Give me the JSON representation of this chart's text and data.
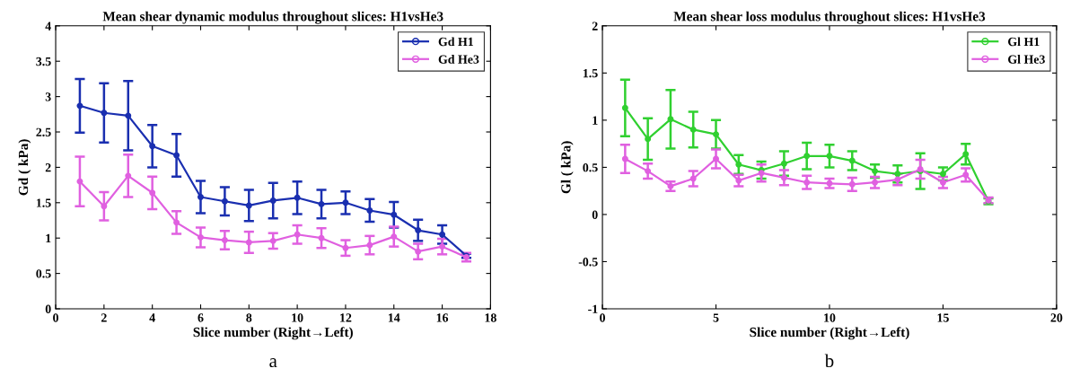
{
  "chart_data": [
    {
      "type": "line",
      "title": "Mean shear dynamic modulus throughout slices: H1vsHe3",
      "xlabel": "Slice number (Right→Left)",
      "ylabel": "Gd ( kPa)",
      "annotations": [
        "a"
      ],
      "x": [
        1,
        2,
        3,
        4,
        5,
        6,
        7,
        8,
        9,
        10,
        11,
        12,
        13,
        14,
        15,
        16,
        17
      ],
      "xlim": [
        0,
        18
      ],
      "xticks": [
        0,
        2,
        4,
        6,
        8,
        10,
        12,
        14,
        16,
        18
      ],
      "ylim": [
        0,
        4
      ],
      "yticks": [
        0,
        0.5,
        1,
        1.5,
        2,
        2.5,
        3,
        3.5,
        4
      ],
      "marker": "circle",
      "line_style": "solid",
      "legend": "top right",
      "grid": false,
      "series": [
        {
          "name": "Gd H1",
          "color": "#1a2fb0",
          "values": [
            2.87,
            2.77,
            2.73,
            2.3,
            2.17,
            1.58,
            1.52,
            1.46,
            1.53,
            1.57,
            1.48,
            1.5,
            1.39,
            1.33,
            1.11,
            1.05,
            0.75
          ],
          "errors": [
            0.38,
            0.42,
            0.49,
            0.3,
            0.3,
            0.23,
            0.2,
            0.22,
            0.25,
            0.23,
            0.2,
            0.16,
            0.16,
            0.18,
            0.15,
            0.13,
            0.03
          ]
        },
        {
          "name": "Gd He3",
          "color": "#e060e0",
          "values": [
            1.8,
            1.45,
            1.88,
            1.64,
            1.22,
            1.01,
            0.97,
            0.94,
            0.96,
            1.05,
            1.0,
            0.86,
            0.9,
            1.02,
            0.81,
            0.88,
            0.73
          ],
          "errors": [
            0.35,
            0.2,
            0.3,
            0.23,
            0.16,
            0.14,
            0.13,
            0.15,
            0.11,
            0.13,
            0.14,
            0.11,
            0.13,
            0.14,
            0.11,
            0.11,
            0.06
          ]
        }
      ]
    },
    {
      "type": "line",
      "title": "Mean shear loss modulus throughout slices: H1vsHe3",
      "xlabel": "Slice number (Right→Left)",
      "ylabel": "Gl ( kPa)",
      "annotations": [
        "b"
      ],
      "x": [
        1,
        2,
        3,
        4,
        5,
        6,
        7,
        8,
        9,
        10,
        11,
        12,
        13,
        14,
        15,
        16,
        17
      ],
      "xlim": [
        0,
        20
      ],
      "xticks": [
        0,
        5,
        10,
        15,
        20
      ],
      "ylim": [
        -1,
        2
      ],
      "yticks": [
        -1,
        -0.5,
        0,
        0.5,
        1,
        1.5,
        2
      ],
      "marker": "circle",
      "line_style": "solid",
      "legend": "top right",
      "grid": false,
      "series": [
        {
          "name": "Gl H1",
          "color": "#30d030",
          "values": [
            1.13,
            0.8,
            1.01,
            0.9,
            0.85,
            0.53,
            0.47,
            0.54,
            0.62,
            0.62,
            0.57,
            0.46,
            0.43,
            0.46,
            0.43,
            0.64,
            0.14
          ],
          "errors": [
            0.3,
            0.22,
            0.31,
            0.19,
            0.15,
            0.1,
            0.09,
            0.13,
            0.14,
            0.12,
            0.1,
            0.07,
            0.09,
            0.19,
            0.07,
            0.11,
            0.03
          ]
        },
        {
          "name": "Gl He3",
          "color": "#e060e0",
          "values": [
            0.59,
            0.46,
            0.3,
            0.38,
            0.59,
            0.36,
            0.44,
            0.39,
            0.34,
            0.33,
            0.32,
            0.34,
            0.37,
            0.48,
            0.34,
            0.42,
            0.15
          ],
          "errors": [
            0.15,
            0.08,
            0.05,
            0.08,
            0.1,
            0.06,
            0.09,
            0.08,
            0.07,
            0.05,
            0.07,
            0.06,
            0.06,
            0.1,
            0.06,
            0.07,
            0.03
          ]
        }
      ]
    }
  ]
}
